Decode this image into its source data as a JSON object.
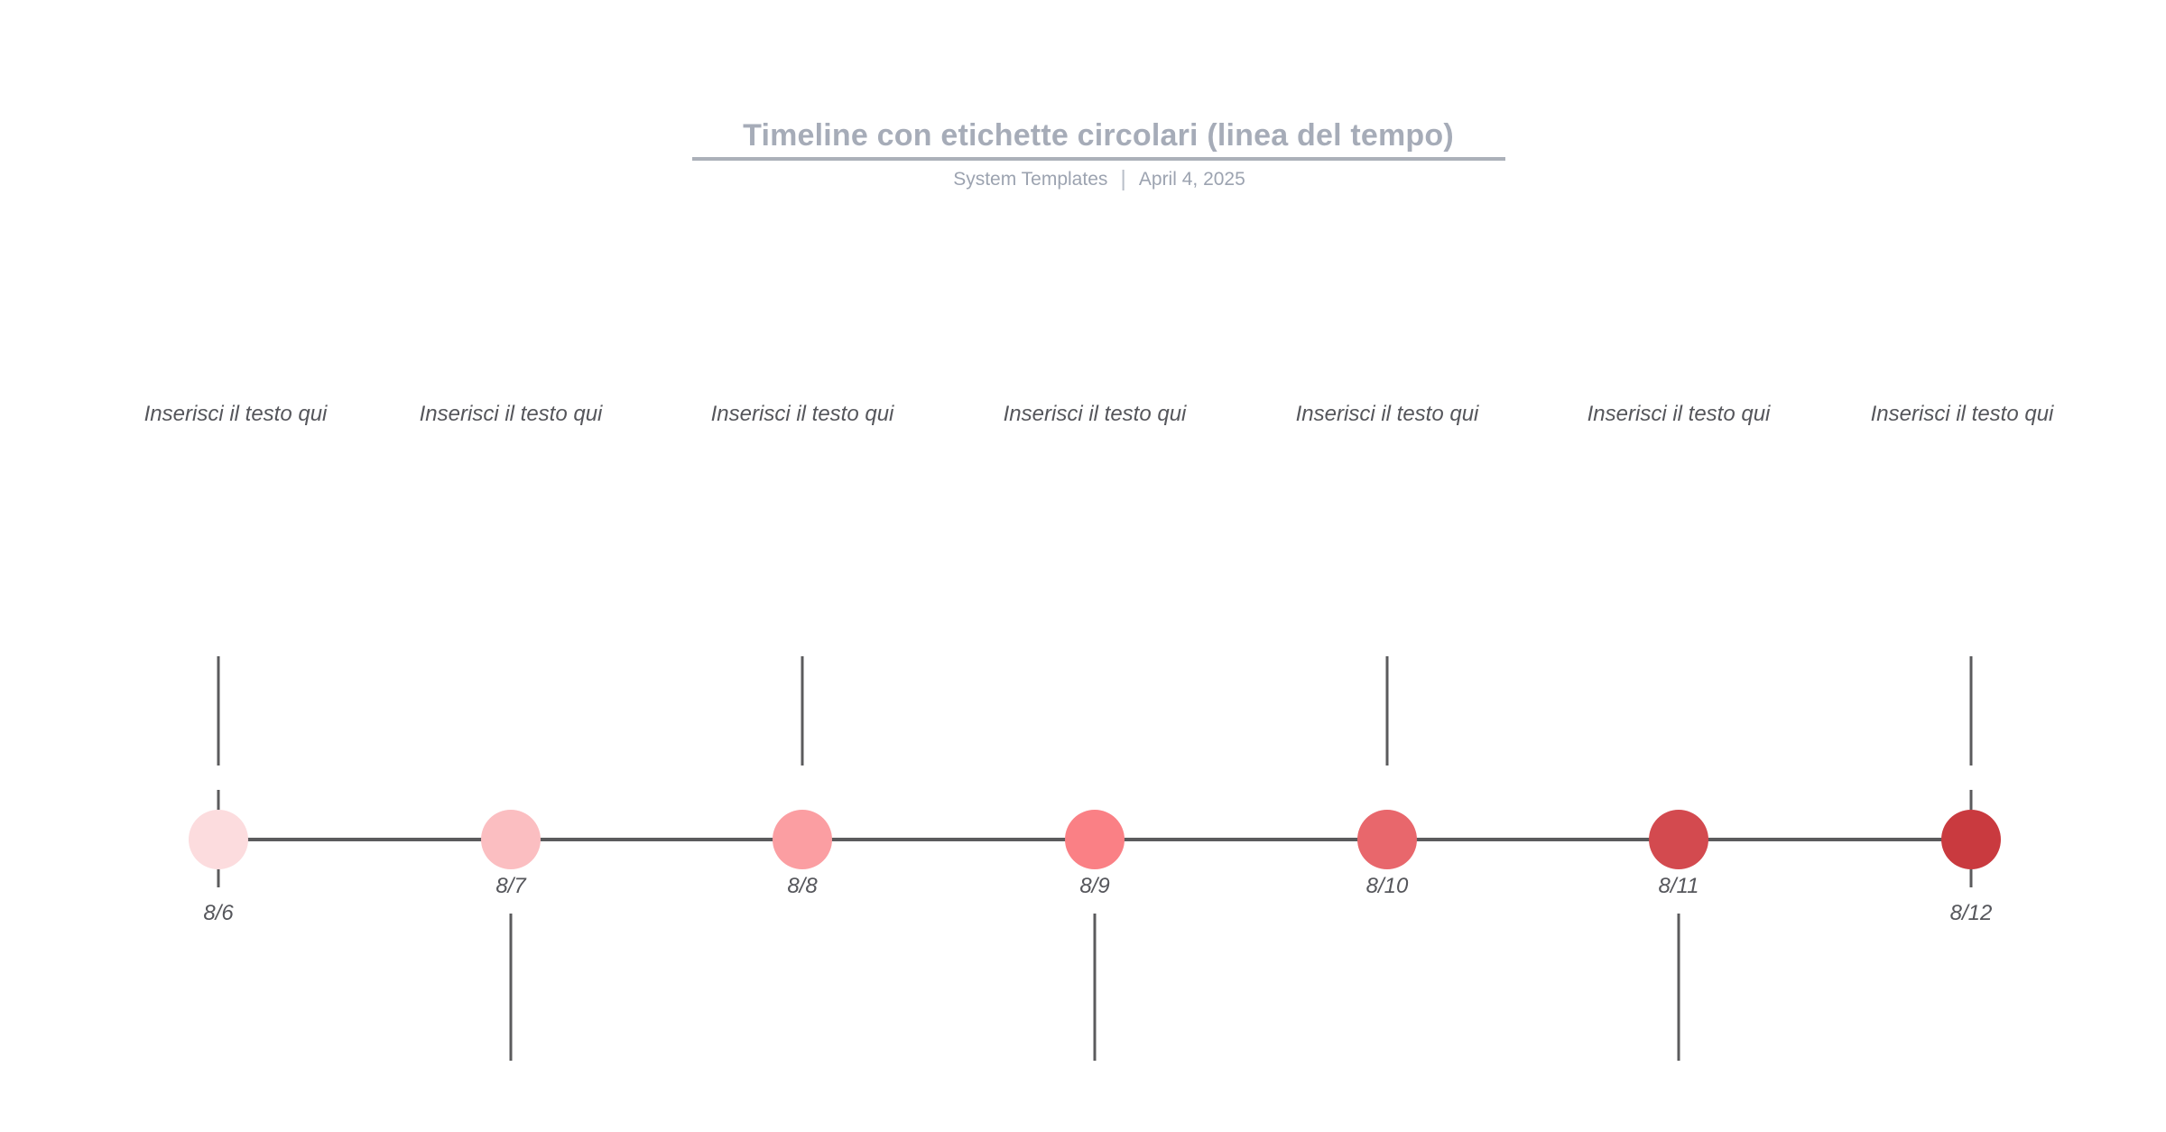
{
  "header": {
    "title": "Timeline con etichette circolari (linea del tempo)",
    "author": "System Templates",
    "separator": "|",
    "date": "April 4, 2025"
  },
  "colors": {
    "title": "#A6ACB8",
    "underline": "#ABB0B9",
    "subtitle": "#9CA3B0",
    "axis": "#5B5B5D",
    "text": "#55565B"
  },
  "timeline": {
    "nodes": [
      {
        "date": "8/6",
        "label": "Inserisci il testo qui",
        "color": "#FCDCDE",
        "stem": "above",
        "endpoint": true
      },
      {
        "date": "8/7",
        "label": "Inserisci il testo qui",
        "color": "#FBBEC1",
        "stem": "below",
        "endpoint": false
      },
      {
        "date": "8/8",
        "label": "Inserisci il testo qui",
        "color": "#FB9EA2",
        "stem": "above",
        "endpoint": false
      },
      {
        "date": "8/9",
        "label": "Inserisci il testo qui",
        "color": "#FA8085",
        "stem": "below",
        "endpoint": false
      },
      {
        "date": "8/10",
        "label": "Inserisci il testo qui",
        "color": "#E8676C",
        "stem": "above",
        "endpoint": false
      },
      {
        "date": "8/11",
        "label": "Inserisci il testo qui",
        "color": "#D34A4F",
        "stem": "below",
        "endpoint": false
      },
      {
        "date": "8/12",
        "label": "Inserisci il testo qui",
        "color": "#C93A3F",
        "stem": "above",
        "endpoint": true
      }
    ]
  }
}
